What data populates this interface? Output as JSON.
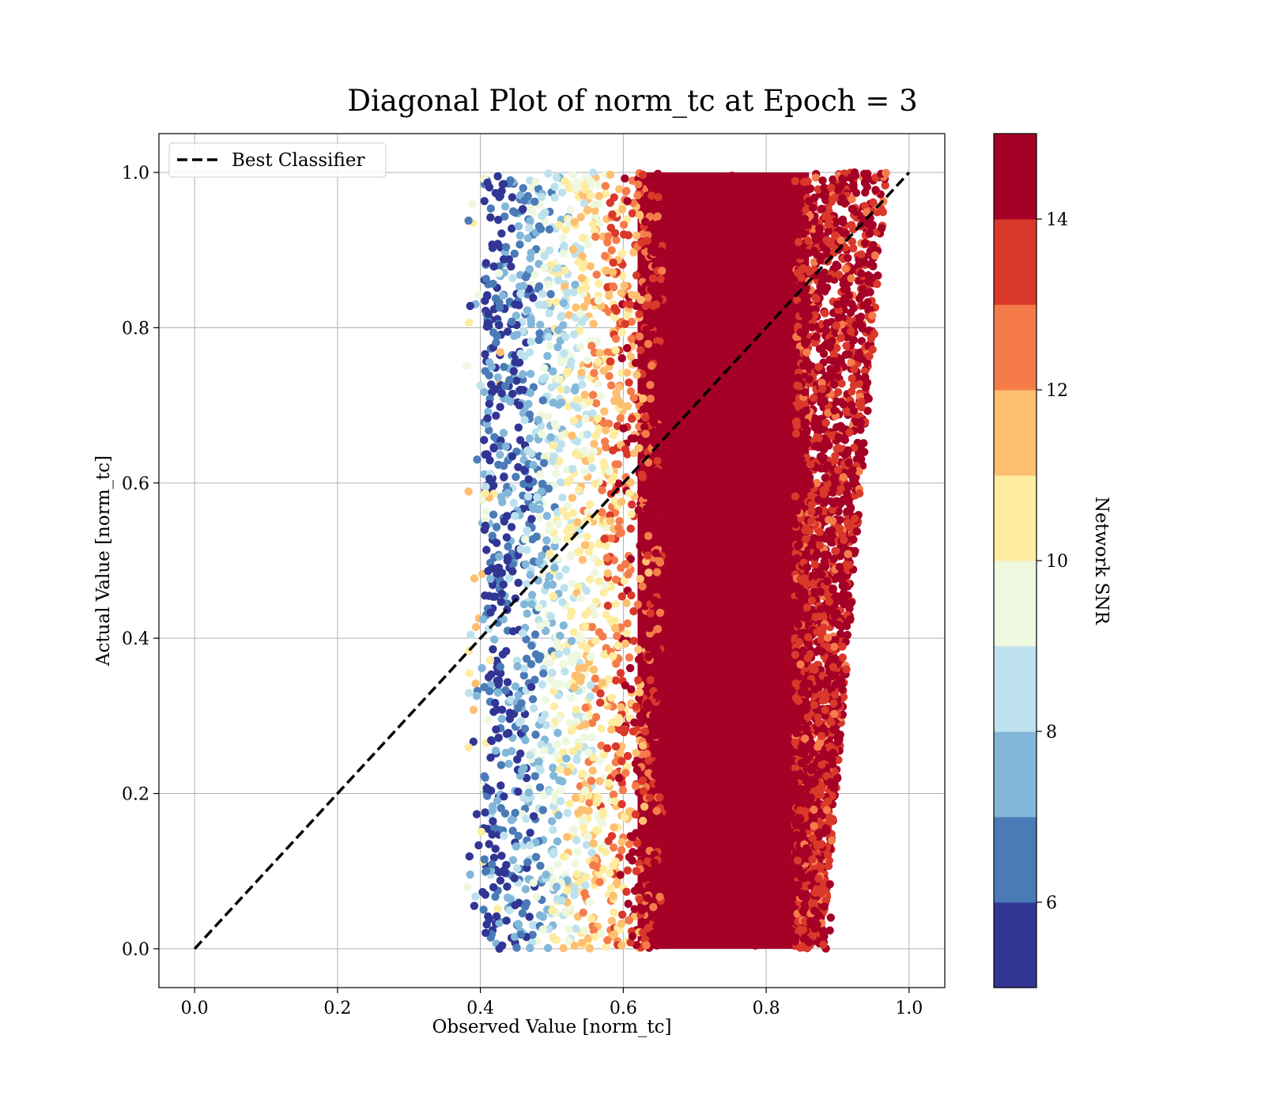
{
  "chart_data": {
    "type": "scatter",
    "title": "Diagonal Plot of norm_tc at Epoch = 3",
    "xlabel": "Observed Value [norm_tc]",
    "ylabel": "Actual Value [norm_tc]",
    "xlim": [
      -0.05,
      1.05
    ],
    "ylim": [
      -0.05,
      1.05
    ],
    "xticks": [
      "0.0",
      "0.2",
      "0.4",
      "0.6",
      "0.8",
      "1.0"
    ],
    "yticks": [
      "0.0",
      "0.2",
      "0.4",
      "0.6",
      "0.8",
      "1.0"
    ],
    "grid": true,
    "legend": {
      "placement": "top-left",
      "entries": [
        "Best Classifier"
      ]
    },
    "reference_line": {
      "name": "Best Classifier",
      "x": [
        0.0,
        1.0
      ],
      "y": [
        0.0,
        1.0
      ],
      "style": "dashed",
      "color": "#000000"
    },
    "points": {
      "description_units": "x = observed norm_tc, y = actual norm_tc, c = Network SNR",
      "x_range": [
        0.38,
        0.98
      ],
      "y_range": [
        0.0,
        1.0
      ],
      "snr_range": [
        5.0,
        15.0
      ],
      "dense_core_x": [
        0.62,
        0.9
      ],
      "dense_core_snr": ">= 14"
    },
    "colorbar": {
      "label": "Network SNR",
      "range": [
        5,
        15
      ],
      "ticks": [
        "6",
        "8",
        "10",
        "12",
        "14"
      ],
      "tick_values": [
        6,
        8,
        10,
        12,
        14
      ],
      "bands": [
        {
          "from": 5,
          "to": 6,
          "color": "#313695"
        },
        {
          "from": 6,
          "to": 7,
          "color": "#4a7bb7"
        },
        {
          "from": 7,
          "to": 8,
          "color": "#83b7d9"
        },
        {
          "from": 8,
          "to": 9,
          "color": "#bde2ee"
        },
        {
          "from": 9,
          "to": 10,
          "color": "#eef8df"
        },
        {
          "from": 10,
          "to": 11,
          "color": "#feeda1"
        },
        {
          "from": 11,
          "to": 12,
          "color": "#fdbf70"
        },
        {
          "from": 12,
          "to": 13,
          "color": "#f57c4a"
        },
        {
          "from": 13,
          "to": 14,
          "color": "#da382a"
        },
        {
          "from": 14,
          "to": 15,
          "color": "#a50026"
        }
      ]
    }
  }
}
